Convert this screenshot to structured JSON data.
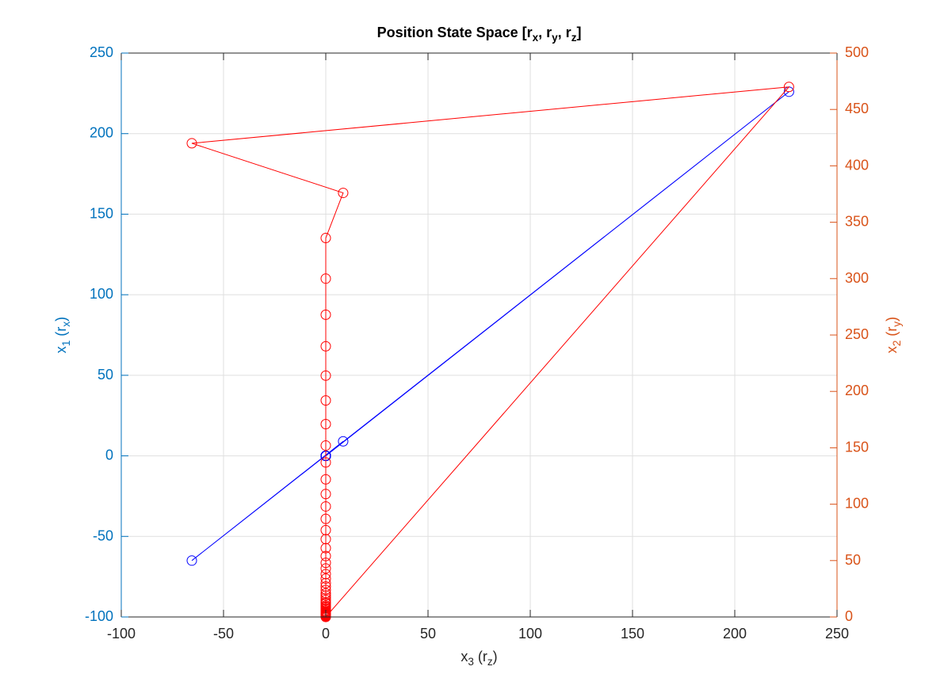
{
  "chart_data": {
    "type": "line",
    "title": "Position State Space [r_x, r_y, r_z]",
    "x_label": "x_3 (r_z)",
    "y_label": "x_1 (r_x)",
    "y2_label": "x_2 (r_y)",
    "x": [
      0,
      226.5,
      -65.5,
      8.5,
      0,
      0,
      0,
      0,
      0,
      0,
      0,
      0,
      0,
      0,
      0,
      0,
      0,
      0,
      0,
      0,
      0,
      0,
      0,
      0,
      0,
      0,
      0,
      0,
      0,
      0,
      0,
      0,
      0,
      0,
      0,
      0,
      0,
      0,
      0,
      0,
      0,
      0,
      0,
      0,
      0,
      0,
      0,
      0,
      0,
      0,
      0,
      0,
      0,
      0
    ],
    "series": [
      {
        "name": "x1",
        "color": "#0000ff",
        "axis": "y",
        "values": [
          0,
          226,
          -65,
          9,
          0,
          0,
          0,
          0,
          0,
          0,
          0,
          0,
          0,
          0,
          0,
          0,
          0,
          0,
          0,
          0,
          0,
          0,
          0,
          0,
          0,
          0,
          0,
          0,
          0,
          0,
          0,
          0,
          0,
          0,
          0,
          0,
          0,
          0,
          0,
          0,
          0,
          0,
          0,
          0,
          0,
          0,
          0,
          0,
          0,
          0,
          0,
          0,
          0,
          0
        ]
      },
      {
        "name": "x2",
        "color": "#ff0000",
        "axis": "y2",
        "values": [
          0,
          470,
          420,
          376,
          336,
          300,
          268,
          240,
          214,
          192,
          171,
          152,
          137,
          122,
          109,
          98,
          87,
          77,
          69,
          61,
          54,
          48,
          43,
          38,
          34,
          30,
          27,
          24,
          21,
          19,
          17,
          15,
          13,
          12,
          10,
          9,
          8,
          7,
          6,
          5,
          4.5,
          4,
          3.5,
          3,
          2.5,
          2,
          1.8,
          1.6,
          1.4,
          1.2,
          1,
          0.9,
          0.8,
          0.7
        ]
      }
    ],
    "xlim": [
      -100,
      250
    ],
    "xticks": [
      -100,
      -50,
      0,
      50,
      100,
      150,
      200,
      250
    ],
    "ylim": [
      -100,
      250
    ],
    "yticks": [
      -100,
      -50,
      0,
      50,
      100,
      150,
      200,
      250
    ],
    "y2lim": [
      0,
      500
    ],
    "y2ticks": [
      0,
      50,
      100,
      150,
      200,
      250,
      300,
      350,
      400,
      450,
      500
    ],
    "y_color": "#0072bd",
    "y2_color": "#d95319",
    "grid": true,
    "marker": "circle"
  }
}
